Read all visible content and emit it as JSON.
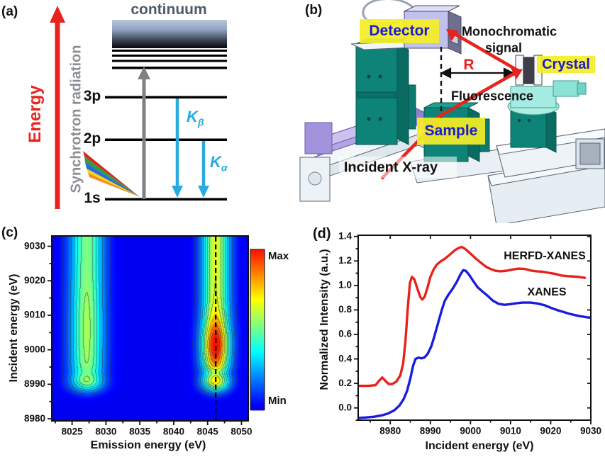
{
  "figure_labels": {
    "a": "(a)",
    "b": "(b)",
    "c": "(c)",
    "d": "(d)"
  },
  "panel_a": {
    "energy_axis": "Energy",
    "radiation": "Synchrotron radiation",
    "continuum": "continuum",
    "levels": {
      "l3p": "3p",
      "l2p": "2p",
      "l1s": "1s"
    },
    "kbeta": {
      "base": "K",
      "sub": "β"
    },
    "kalpha": {
      "base": "K",
      "sub": "α"
    },
    "colors": {
      "energy_red": "#e8221c",
      "radiation_gray": "#8a8f94",
      "transition_cyan": "#29abe2",
      "continuum_text": "#4e5a68"
    }
  },
  "panel_b": {
    "detector": "Detector",
    "crystal": "Crystal",
    "sample": "Sample",
    "monochromatic_line1": "Monochromatic",
    "monochromatic_line2": "signal",
    "fluorescence": "Fluorescence",
    "radius": "R",
    "incident": "Incident X-ray",
    "colors": {
      "chip_yellow": "#f2ee2e",
      "label_blue": "#1b1bd0",
      "beam_red": "#e8221c",
      "stage_teal": "#0e8478",
      "stage_purple": "#b3a5e5",
      "detector_lavender": "#c1c1ee",
      "rotation_cyan": "#a5ebe2"
    }
  },
  "chart_data": [
    {
      "type": "heatmap",
      "panel": "(c)",
      "xlabel": "Emission energy (eV)",
      "ylabel": "Incident energy (eV)",
      "xlim": [
        8022,
        8051
      ],
      "ylim": [
        8979.4,
        9033
      ],
      "xticks": [
        8025,
        8030,
        8035,
        8040,
        8045,
        8050
      ],
      "yticks": [
        8980,
        8990,
        9000,
        9010,
        9020,
        9030
      ],
      "colorbar": {
        "max_label": "Max",
        "min_label": "Min",
        "colormap": "jet"
      },
      "dashed_line_x": 8046.2,
      "background_level": 0.04,
      "edge_onset": {
        "center": 8988.3,
        "width": 0.9
      },
      "emission_peaks": [
        {
          "center": 8027.2,
          "sigma": 1.7,
          "amplitude": 0.52,
          "profile": {
            "plateau": 0.95,
            "bumps": [
              {
                "center": 9006,
                "sigma": 9,
                "amp": 0.1
              },
              {
                "center": 8991.3,
                "sigma": 1.6,
                "amp": 0.12
              },
              {
                "center": 8993.3,
                "sigma": 1.2,
                "amp": -0.1
              }
            ]
          }
        },
        {
          "center": 8046.2,
          "sigma": 1.4,
          "amplitude": 1.0,
          "profile": {
            "plateau": 0.62,
            "bumps": [
              {
                "center": 9001.5,
                "sigma": 5.0,
                "amp": 0.38
              },
              {
                "center": 8991.0,
                "sigma": 1.5,
                "amp": 0.1
              },
              {
                "center": 8993.3,
                "sigma": 1.2,
                "amp": -0.18
              }
            ]
          }
        }
      ],
      "contour_levels": [
        0.1,
        0.16,
        0.24,
        0.32,
        0.4,
        0.48,
        0.56,
        0.66,
        0.76,
        0.86,
        0.94
      ]
    },
    {
      "type": "line",
      "panel": "(d)",
      "xlabel": "Incident energy (eV)",
      "ylabel": "Normalized Intensity (a.u.)",
      "xlim": [
        8972,
        9030
      ],
      "ylim": [
        -0.1,
        1.41
      ],
      "xticks": [
        8980,
        8990,
        9000,
        9010,
        9020,
        9030
      ],
      "yticks": [
        0.0,
        0.2,
        0.4,
        0.6,
        0.8,
        1.0,
        1.2,
        1.4
      ],
      "series": [
        {
          "name": "HERFD-XANES",
          "color": "#e8211c",
          "x": [
            8972,
            8974.5,
            8976.3,
            8977.3,
            8978,
            8978.8,
            8979.6,
            8980.5,
            8981.5,
            8982.5,
            8983.2,
            8983.8,
            8984.4,
            8984.9,
            8985.4,
            8986,
            8986.8,
            8987.5,
            8988,
            8988.6,
            8989.3,
            8990,
            8990.8,
            8991.6,
            8992.5,
            8993.5,
            8994.8,
            8996,
            8997,
            8997.8,
            8998.6,
            8999.5,
            9000.5,
            9001.5,
            9002.8,
            9004,
            9005,
            9006.2,
            9007.5,
            9009,
            9010.5,
            9012,
            9013.5,
            9015,
            9016.5,
            9018,
            9019.5,
            9021,
            9022.5,
            9024,
            9025.5,
            9027,
            9028.5
          ],
          "y": [
            0.18,
            0.18,
            0.185,
            0.225,
            0.248,
            0.22,
            0.195,
            0.195,
            0.215,
            0.265,
            0.36,
            0.55,
            0.83,
            1.02,
            1.07,
            1.05,
            0.97,
            0.905,
            0.885,
            0.91,
            0.985,
            1.07,
            1.13,
            1.17,
            1.195,
            1.215,
            1.25,
            1.285,
            1.305,
            1.315,
            1.3,
            1.275,
            1.245,
            1.215,
            1.18,
            1.15,
            1.135,
            1.12,
            1.115,
            1.12,
            1.13,
            1.138,
            1.135,
            1.122,
            1.115,
            1.112,
            1.103,
            1.095,
            1.082,
            1.076,
            1.073,
            1.07,
            1.062
          ]
        },
        {
          "name": "XANES",
          "color": "#1b1be0",
          "x": [
            8972,
            8974,
            8976,
            8978,
            8979.5,
            8981,
            8982.3,
            8983.3,
            8984.2,
            8985,
            8985.7,
            8986.3,
            8987,
            8987.8,
            8988.5,
            8989.3,
            8990.2,
            8991,
            8991.9,
            8992.8,
            8993.6,
            8994.5,
            8995.5,
            8996.6,
            8997.5,
            8998.2,
            8998.8,
            8999.6,
            9000.6,
            9001.8,
            9003,
            9004.3,
            9005.6,
            9007,
            9008.5,
            9010,
            9011.5,
            9013,
            9015,
            9016.8,
            9018.5,
            9020,
            9021.5,
            9023,
            9024.5,
            9026,
            9027.5,
            9029,
            9030
          ],
          "y": [
            -0.082,
            -0.078,
            -0.072,
            -0.06,
            -0.045,
            -0.02,
            0.02,
            0.07,
            0.14,
            0.24,
            0.345,
            0.4,
            0.41,
            0.405,
            0.412,
            0.44,
            0.5,
            0.585,
            0.69,
            0.795,
            0.875,
            0.925,
            0.97,
            1.03,
            1.09,
            1.125,
            1.12,
            1.09,
            1.04,
            0.985,
            0.95,
            0.915,
            0.875,
            0.85,
            0.842,
            0.848,
            0.855,
            0.86,
            0.86,
            0.852,
            0.838,
            0.818,
            0.8,
            0.785,
            0.77,
            0.758,
            0.748,
            0.74,
            0.737
          ]
        }
      ]
    }
  ]
}
